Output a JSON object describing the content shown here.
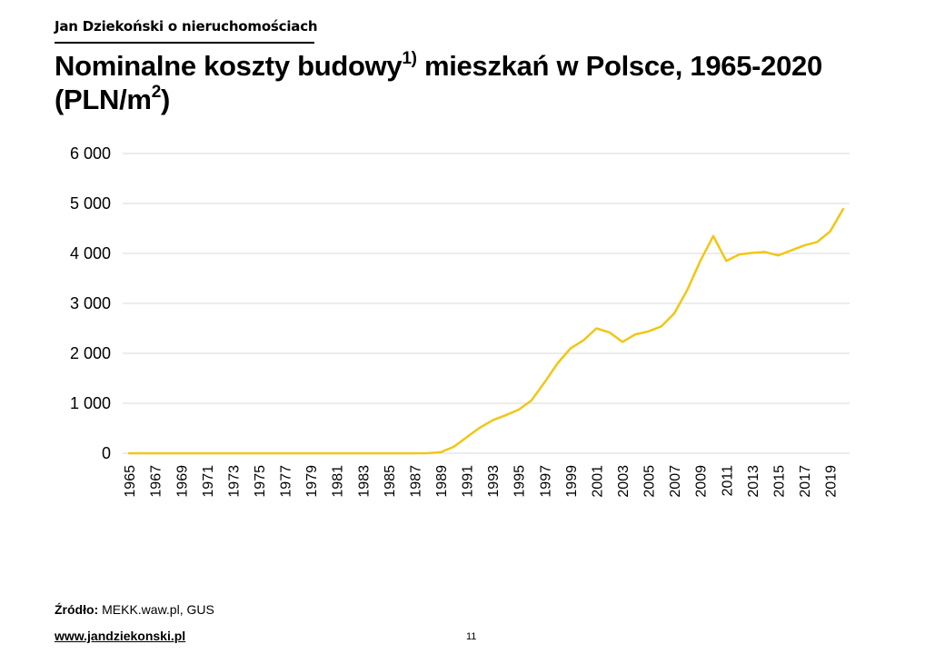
{
  "header": {
    "brand": "Jan Dziekoński o nieruchomościach",
    "title_part1": "Nominalne koszty budowy",
    "title_sup1": "1)",
    "title_part2": " mieszkań w Polsce, 1965-2020",
    "title_part3": "(PLN/m",
    "title_sup2": "2",
    "title_part4": ")"
  },
  "footer": {
    "source_label": "Źródło:",
    "source_text": " MEKK.waw.pl, GUS",
    "website": "www.jandziekonski.pl",
    "page_number": "11"
  },
  "colors": {
    "line": "#F2C615",
    "grid": "#D9D9D9",
    "text": "#000000"
  },
  "chart_data": {
    "type": "line",
    "title": "Nominalne koszty budowy1) mieszkań w Polsce, 1965-2020 (PLN/m2)",
    "xlabel": "",
    "ylabel": "",
    "ylim": [
      0,
      6000
    ],
    "yticks": [
      0,
      1000,
      2000,
      3000,
      4000,
      5000,
      6000
    ],
    "ytick_labels": [
      "0",
      "1 000",
      "2 000",
      "3 000",
      "4 000",
      "5 000",
      "6 000"
    ],
    "xtick_labels": [
      "1965",
      "1967",
      "1969",
      "1971",
      "1973",
      "1975",
      "1977",
      "1979",
      "1981",
      "1983",
      "1985",
      "1987",
      "1989",
      "1991",
      "1993",
      "1995",
      "1997",
      "1999",
      "2001",
      "2003",
      "2005",
      "2007",
      "2009",
      "2011",
      "2013",
      "2015",
      "2017",
      "2019"
    ],
    "grid": true,
    "legend": "none",
    "x": [
      1965,
      1966,
      1967,
      1968,
      1969,
      1970,
      1971,
      1972,
      1973,
      1974,
      1975,
      1976,
      1977,
      1978,
      1979,
      1980,
      1981,
      1982,
      1983,
      1984,
      1985,
      1986,
      1987,
      1988,
      1989,
      1990,
      1991,
      1992,
      1993,
      1994,
      1995,
      1996,
      1997,
      1998,
      1999,
      2000,
      2001,
      2002,
      2003,
      2004,
      2005,
      2006,
      2007,
      2008,
      2009,
      2010,
      2011,
      2012,
      2013,
      2014,
      2015,
      2016,
      2017,
      2018,
      2019,
      2020
    ],
    "values": [
      0,
      0,
      0,
      0,
      0,
      0,
      0,
      0,
      0,
      0,
      0,
      0,
      0,
      0,
      0,
      0,
      0,
      0,
      0,
      0,
      0,
      0,
      0,
      2,
      20,
      130,
      320,
      510,
      660,
      760,
      870,
      1060,
      1420,
      1800,
      2100,
      2260,
      2500,
      2420,
      2230,
      2380,
      2440,
      2540,
      2800,
      3270,
      3850,
      4350,
      3850,
      3980,
      4010,
      4030,
      3960,
      4060,
      4160,
      4230,
      4440,
      4890
    ]
  }
}
